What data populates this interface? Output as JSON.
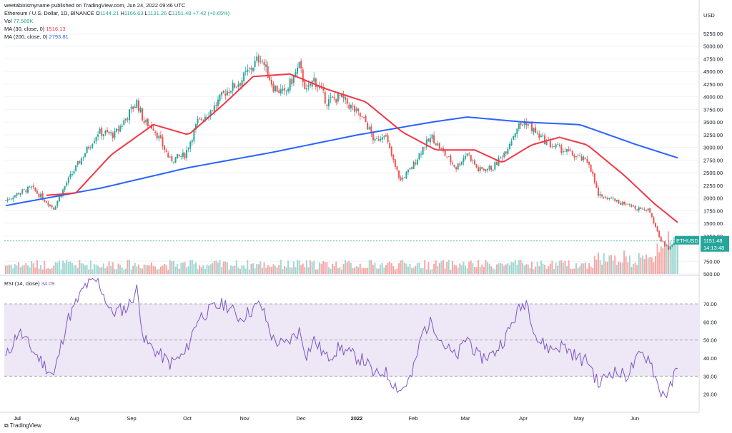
{
  "publisher": "weetabixismyname published on TradingView.com, Jun 24, 2022 09:46 UTC",
  "symbol_line": {
    "name": "Ethereum / U.S. Dollar, 1D, BINANCE",
    "o_label": "O",
    "o": "1144.21",
    "h_label": "H",
    "h": "1166.63",
    "l_label": "L",
    "l": "1131.26",
    "c_label": "C",
    "c": "1151.48",
    "chg": "+7.42 (+0.65%)"
  },
  "vol_line": {
    "label": "Vol",
    "value": "77.589K"
  },
  "ma30_line": {
    "label": "MA (30, close, 0)",
    "value": "1516.13"
  },
  "ma200_line": {
    "label": "MA (200, close, 0)",
    "value": "2793.81"
  },
  "rsi_line": {
    "label": "RSI (14, close)",
    "value": "34.09"
  },
  "price_badge": {
    "symbol": "ETHUSD",
    "price": "1151.48",
    "countdown": "14:13:48"
  },
  "footer": "TradingView",
  "colors": {
    "up": "#26a69a",
    "down": "#ef5350",
    "ma30": "#f23645",
    "ma200": "#2962ff",
    "rsi": "#7e57c2",
    "rsi_band": "#ede7f6"
  },
  "chart_data": [
    {
      "type": "candlestick",
      "title": "Ethereum / U.S. Dollar, 1D, BINANCE",
      "ylabel": "USD",
      "ylim": [
        500,
        5250
      ],
      "yticks": [
        "5250.00",
        "5000.00",
        "4750.00",
        "4500.00",
        "4250.00",
        "4000.00",
        "3750.00",
        "3500.00",
        "3250.00",
        "3000.00",
        "2750.00",
        "2500.00",
        "2250.00",
        "2000.00",
        "1750.00",
        "1500.00",
        "1250.00",
        "750.00",
        "500.00"
      ],
      "x_labels": [
        "Jul",
        "Aug",
        "Sep",
        "Oct",
        "Nov",
        "Dec",
        "2022",
        "Feb",
        "Mar",
        "Apr",
        "May",
        "Jun",
        "Jul"
      ],
      "close_keypoints": [
        [
          "2021-06-24",
          1950
        ],
        [
          "2021-07-01",
          2100
        ],
        [
          "2021-07-08",
          2200
        ],
        [
          "2021-07-20",
          1800
        ],
        [
          "2021-07-27",
          2300
        ],
        [
          "2021-08-06",
          2900
        ],
        [
          "2021-08-13",
          3300
        ],
        [
          "2021-08-22",
          3250
        ],
        [
          "2021-09-03",
          3900
        ],
        [
          "2021-09-07",
          3500
        ],
        [
          "2021-09-12",
          3400
        ],
        [
          "2021-09-21",
          2750
        ],
        [
          "2021-09-29",
          2850
        ],
        [
          "2021-10-06",
          3500
        ],
        [
          "2021-10-15",
          3800
        ],
        [
          "2021-10-21",
          4100
        ],
        [
          "2021-10-29",
          4300
        ],
        [
          "2021-11-09",
          4800
        ],
        [
          "2021-11-16",
          4200
        ],
        [
          "2021-11-22",
          4050
        ],
        [
          "2021-11-30",
          4600
        ],
        [
          "2021-12-04",
          4100
        ],
        [
          "2021-12-08",
          4350
        ],
        [
          "2021-12-15",
          3900
        ],
        [
          "2021-12-22",
          4000
        ],
        [
          "2021-12-28",
          3800
        ],
        [
          "2022-01-05",
          3500
        ],
        [
          "2022-01-10",
          3100
        ],
        [
          "2022-01-15",
          3300
        ],
        [
          "2022-01-21",
          2600
        ],
        [
          "2022-01-24",
          2350
        ],
        [
          "2022-01-30",
          2600
        ],
        [
          "2022-02-05",
          3000
        ],
        [
          "2022-02-10",
          3200
        ],
        [
          "2022-02-16",
          2900
        ],
        [
          "2022-02-23",
          2600
        ],
        [
          "2022-03-01",
          2900
        ],
        [
          "2022-03-07",
          2550
        ],
        [
          "2022-03-15",
          2600
        ],
        [
          "2022-03-22",
          2950
        ],
        [
          "2022-03-28",
          3400
        ],
        [
          "2022-04-02",
          3500
        ],
        [
          "2022-04-08",
          3250
        ],
        [
          "2022-04-15",
          3050
        ],
        [
          "2022-04-22",
          2950
        ],
        [
          "2022-04-30",
          2800
        ],
        [
          "2022-05-06",
          2700
        ],
        [
          "2022-05-11",
          2050
        ],
        [
          "2022-05-18",
          2000
        ],
        [
          "2022-05-26",
          1850
        ],
        [
          "2022-06-03",
          1800
        ],
        [
          "2022-06-08",
          1750
        ],
        [
          "2022-06-13",
          1200
        ],
        [
          "2022-06-18",
          1000
        ],
        [
          "2022-06-21",
          1100
        ],
        [
          "2022-06-23",
          1151.48
        ]
      ],
      "ma30_keypoints": [
        [
          "2021-07-15",
          2050
        ],
        [
          "2021-08-01",
          2100
        ],
        [
          "2021-08-20",
          2850
        ],
        [
          "2021-09-12",
          3450
        ],
        [
          "2021-10-01",
          3250
        ],
        [
          "2021-10-20",
          3850
        ],
        [
          "2021-11-05",
          4400
        ],
        [
          "2021-11-25",
          4450
        ],
        [
          "2021-12-15",
          4150
        ],
        [
          "2022-01-05",
          3900
        ],
        [
          "2022-01-25",
          3300
        ],
        [
          "2022-02-12",
          2950
        ],
        [
          "2022-03-05",
          2950
        ],
        [
          "2022-03-20",
          2700
        ],
        [
          "2022-04-05",
          3050
        ],
        [
          "2022-04-20",
          3200
        ],
        [
          "2022-05-05",
          3050
        ],
        [
          "2022-05-25",
          2450
        ],
        [
          "2022-06-10",
          1900
        ],
        [
          "2022-06-23",
          1516.13
        ]
      ],
      "ma200_keypoints": [
        [
          "2021-06-24",
          1850
        ],
        [
          "2021-08-15",
          2200
        ],
        [
          "2021-10-01",
          2600
        ],
        [
          "2021-11-15",
          2900
        ],
        [
          "2022-01-01",
          3250
        ],
        [
          "2022-02-10",
          3500
        ],
        [
          "2022-03-01",
          3600
        ],
        [
          "2022-04-01",
          3500
        ],
        [
          "2022-05-01",
          3450
        ],
        [
          "2022-06-01",
          3050
        ],
        [
          "2022-06-23",
          2793.81
        ]
      ]
    },
    {
      "type": "line",
      "title": "RSI (14, close)",
      "ylim": [
        10,
        85
      ],
      "yticks": [
        "70.00",
        "60.00",
        "50.00",
        "40.00",
        "30.00",
        "20.00"
      ],
      "band": [
        30,
        70
      ],
      "midline": 50,
      "rsi_keypoints": [
        [
          "2021-06-24",
          40
        ],
        [
          "2021-07-01",
          55
        ],
        [
          "2021-07-08",
          45
        ],
        [
          "2021-07-20",
          30
        ],
        [
          "2021-07-27",
          60
        ],
        [
          "2021-08-06",
          80
        ],
        [
          "2021-08-13",
          83
        ],
        [
          "2021-08-20",
          65
        ],
        [
          "2021-08-29",
          68
        ],
        [
          "2021-09-03",
          78
        ],
        [
          "2021-09-07",
          50
        ],
        [
          "2021-09-12",
          45
        ],
        [
          "2021-09-21",
          37
        ],
        [
          "2021-09-29",
          42
        ],
        [
          "2021-10-06",
          62
        ],
        [
          "2021-10-15",
          68
        ],
        [
          "2021-10-21",
          70
        ],
        [
          "2021-10-29",
          62
        ],
        [
          "2021-11-09",
          70
        ],
        [
          "2021-11-16",
          50
        ],
        [
          "2021-11-22",
          47
        ],
        [
          "2021-11-30",
          55
        ],
        [
          "2021-12-04",
          42
        ],
        [
          "2021-12-08",
          50
        ],
        [
          "2021-12-15",
          40
        ],
        [
          "2021-12-22",
          46
        ],
        [
          "2021-12-28",
          42
        ],
        [
          "2022-01-05",
          38
        ],
        [
          "2022-01-10",
          30
        ],
        [
          "2022-01-15",
          33
        ],
        [
          "2022-01-21",
          25
        ],
        [
          "2022-01-24",
          22
        ],
        [
          "2022-01-30",
          30
        ],
        [
          "2022-02-05",
          55
        ],
        [
          "2022-02-10",
          60
        ],
        [
          "2022-02-16",
          48
        ],
        [
          "2022-02-23",
          40
        ],
        [
          "2022-03-01",
          52
        ],
        [
          "2022-03-07",
          40
        ],
        [
          "2022-03-15",
          42
        ],
        [
          "2022-03-22",
          52
        ],
        [
          "2022-03-28",
          65
        ],
        [
          "2022-04-02",
          72
        ],
        [
          "2022-04-08",
          50
        ],
        [
          "2022-04-15",
          45
        ],
        [
          "2022-04-22",
          47
        ],
        [
          "2022-04-30",
          40
        ],
        [
          "2022-05-06",
          38
        ],
        [
          "2022-05-11",
          25
        ],
        [
          "2022-05-18",
          33
        ],
        [
          "2022-05-26",
          30
        ],
        [
          "2022-06-03",
          42
        ],
        [
          "2022-06-08",
          40
        ],
        [
          "2022-06-13",
          22
        ],
        [
          "2022-06-18",
          20
        ],
        [
          "2022-06-21",
          30
        ],
        [
          "2022-06-23",
          34.09
        ]
      ]
    }
  ]
}
